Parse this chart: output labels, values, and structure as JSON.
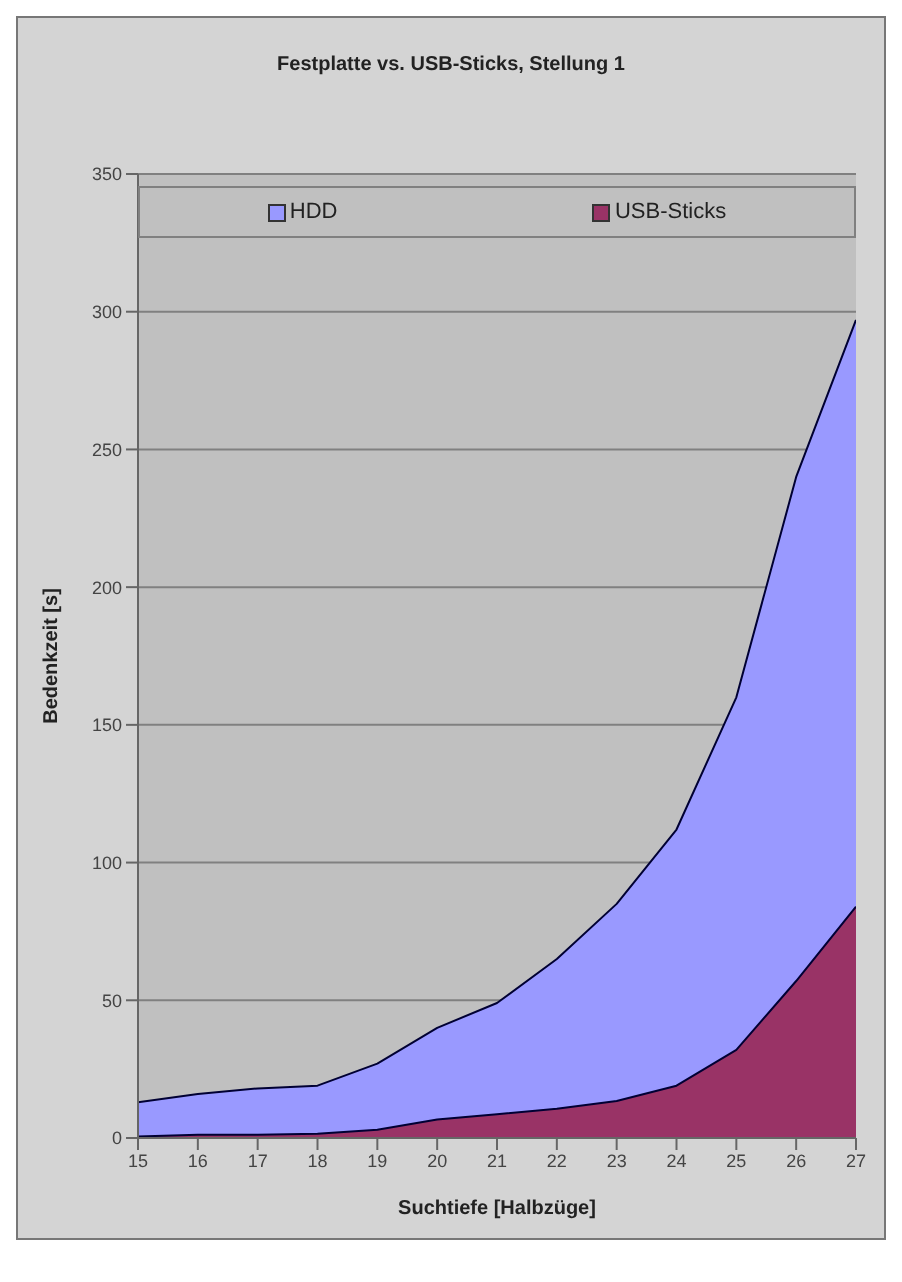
{
  "chart_data": {
    "type": "area",
    "title": "Festplatte vs. USB-Sticks, Stellung 1",
    "xlabel": "Suchtiefe [Halbzüge]",
    "ylabel": "Bedenkzeit [s]",
    "x": [
      15,
      16,
      17,
      18,
      19,
      20,
      21,
      22,
      23,
      24,
      25,
      26,
      27
    ],
    "xlim": [
      15,
      27
    ],
    "xticks": [
      15,
      16,
      17,
      18,
      19,
      20,
      21,
      22,
      23,
      24,
      25,
      26,
      27
    ],
    "ylim": [
      0,
      350
    ],
    "yticks": [
      0,
      50,
      100,
      150,
      200,
      250,
      300,
      350
    ],
    "grid": "y",
    "legend": "top",
    "series": [
      {
        "name": "HDD",
        "color": "#9999ff",
        "values": [
          13,
          16,
          18,
          19,
          27,
          40,
          49,
          65,
          85,
          112,
          160,
          240,
          297
        ]
      },
      {
        "name": "USB-Sticks",
        "color": "#993366",
        "values": [
          0.5,
          1.2,
          1.2,
          1.5,
          3,
          6.7,
          8.6,
          10.6,
          13.4,
          19,
          32,
          57,
          84
        ]
      }
    ]
  }
}
